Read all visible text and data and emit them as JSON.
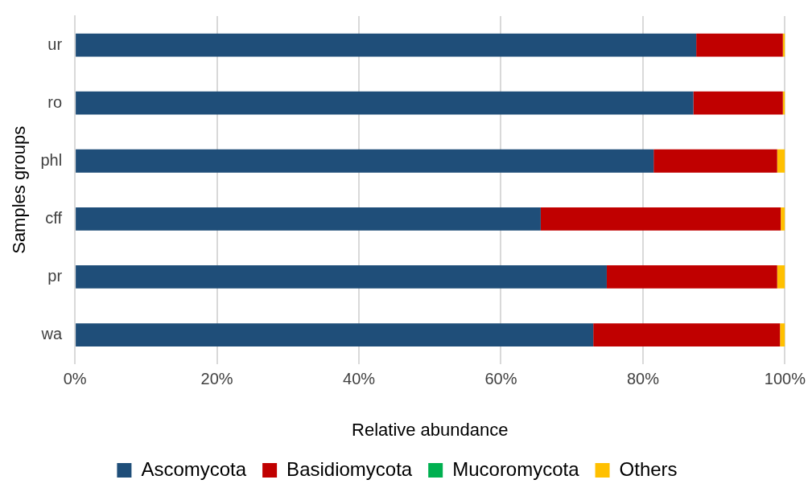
{
  "chart_data": {
    "type": "bar",
    "orientation": "horizontal",
    "stacked": true,
    "xlabel": "Relative abundance",
    "ylabel": "Samples groups",
    "categories": [
      "ur",
      "ro",
      "phl",
      "cff",
      "pr",
      "wa"
    ],
    "series": [
      {
        "name": "Ascomycota",
        "color": "#1f4e79",
        "values": [
          87.5,
          87.1,
          81.5,
          65.6,
          74.9,
          73.0
        ]
      },
      {
        "name": "Basidiomycota",
        "color": "#c00000",
        "values": [
          12.2,
          12.6,
          17.4,
          33.8,
          24.0,
          26.3
        ]
      },
      {
        "name": "Mucoromycota",
        "color": "#00b050",
        "values": [
          0,
          0,
          0,
          0,
          0,
          0
        ]
      },
      {
        "name": "Others",
        "color": "#ffc000",
        "values": [
          0.3,
          0.3,
          1.1,
          0.6,
          1.1,
          0.7
        ]
      }
    ],
    "xlim": [
      0,
      100
    ],
    "xticks": [
      {
        "value": 0,
        "label": "0%"
      },
      {
        "value": 20,
        "label": "20%"
      },
      {
        "value": 40,
        "label": "40%"
      },
      {
        "value": 60,
        "label": "60%"
      },
      {
        "value": 80,
        "label": "80%"
      },
      {
        "value": 100,
        "label": "100%"
      }
    ],
    "grid": "x",
    "legend": "bottom"
  }
}
